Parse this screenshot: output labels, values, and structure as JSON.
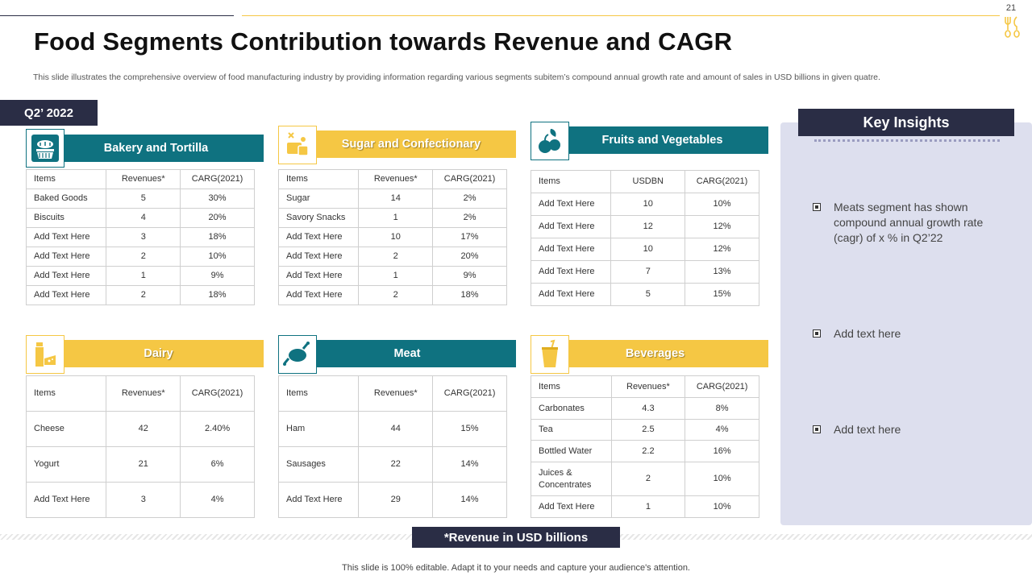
{
  "page_number": "21",
  "title": "Food Segments Contribution towards Revenue and CAGR",
  "subtitle": "This slide illustrates the comprehensive overview of food manufacturing industry by providing information regarding various segments subitem’s compound annual growth rate and amount of sales in USD billions in given quatre.",
  "period_badge": "Q2’ 2022",
  "segments": {
    "bakery": {
      "title": "Bakery and Tortilla",
      "headers": [
        "Items",
        "Revenues*",
        "CARG(2021)"
      ],
      "rows": [
        [
          "Baked Goods",
          "5",
          "30%"
        ],
        [
          "Biscuits",
          "4",
          "20%"
        ],
        [
          "Add Text Here",
          "3",
          "18%"
        ],
        [
          "Add Text Here",
          "2",
          "10%"
        ],
        [
          "Add Text Here",
          "1",
          "9%"
        ],
        [
          "Add Text Here",
          "2",
          "18%"
        ]
      ]
    },
    "sugar": {
      "title": "Sugar and Confectionary",
      "headers": [
        "Items",
        "Revenues*",
        "CARG(2021)"
      ],
      "rows": [
        [
          "Sugar",
          "14",
          "2%"
        ],
        [
          "Savory Snacks",
          "1",
          "2%"
        ],
        [
          "Add Text Here",
          "10",
          "17%"
        ],
        [
          "Add Text Here",
          "2",
          "20%"
        ],
        [
          "Add Text Here",
          "1",
          "9%"
        ],
        [
          "Add Text Here",
          "2",
          "18%"
        ]
      ]
    },
    "fruits": {
      "title": "Fruits and Vegetables",
      "headers": [
        "Items",
        "USDBN",
        "CARG(2021)"
      ],
      "rows": [
        [
          "Add Text Here",
          "10",
          "10%"
        ],
        [
          "Add Text Here",
          "12",
          "12%"
        ],
        [
          "Add Text Here",
          "10",
          "12%"
        ],
        [
          "Add Text Here",
          "7",
          "13%"
        ],
        [
          "Add Text Here",
          "5",
          "15%"
        ]
      ]
    },
    "dairy": {
      "title": "Dairy",
      "headers": [
        "Items",
        "Revenues*",
        "CARG(2021)"
      ],
      "rows": [
        [
          "Cheese",
          "42",
          "2.40%"
        ],
        [
          "Yogurt",
          "21",
          "6%"
        ],
        [
          "Add Text Here",
          "3",
          "4%"
        ]
      ]
    },
    "meat": {
      "title": "Meat",
      "headers": [
        "Items",
        "Revenues*",
        "CARG(2021)"
      ],
      "rows": [
        [
          "Ham",
          "44",
          "15%"
        ],
        [
          "Sausages",
          "22",
          "14%"
        ],
        [
          "Add Text Here",
          "29",
          "14%"
        ]
      ]
    },
    "beverages": {
      "title": "Beverages",
      "headers": [
        "Items",
        "Revenues*",
        "CARG(2021)"
      ],
      "rows": [
        [
          "Carbonates",
          "4.3",
          "8%"
        ],
        [
          "Tea",
          "2.5",
          "4%"
        ],
        [
          "Bottled Water",
          "2.2",
          "16%"
        ],
        [
          "Juices & Concentrates",
          "2",
          "10%"
        ],
        [
          "Add Text Here",
          "1",
          "10%"
        ]
      ]
    }
  },
  "insights": {
    "title": "Key Insights",
    "items": [
      "Meats segment has shown compound  annual growth rate (cagr) of x % in Q2’22",
      "Add text here",
      "Add text here"
    ]
  },
  "footnote": "*Revenue in USD billions",
  "footer": "This slide is 100% editable. Adapt it to your needs and capture your audience's attention.",
  "colors": {
    "navy": "#2a2d45",
    "teal": "#0f7280",
    "gold": "#f5c744",
    "panel": "#dddfee"
  }
}
